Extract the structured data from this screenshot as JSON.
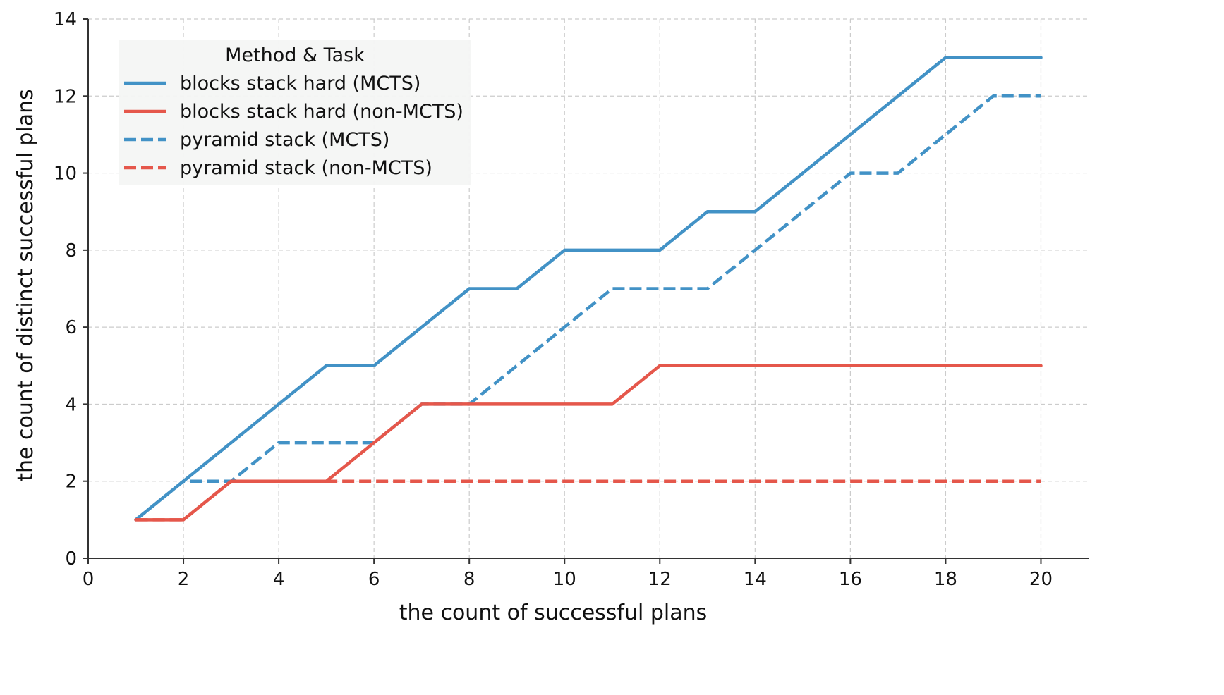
{
  "chart_data": {
    "type": "line",
    "title": "",
    "xlabel": "the count of successful plans",
    "ylabel": "the count of distinct successful plans",
    "xlim": [
      0,
      21
    ],
    "ylim": [
      0,
      14
    ],
    "xticks": [
      0,
      2,
      4,
      6,
      8,
      10,
      12,
      14,
      16,
      18,
      20
    ],
    "yticks": [
      0,
      2,
      4,
      6,
      8,
      10,
      12,
      14
    ],
    "grid": true,
    "legend": {
      "title": "Method & Task",
      "position": "top-left"
    },
    "x": [
      1,
      2,
      3,
      4,
      5,
      6,
      7,
      8,
      9,
      10,
      11,
      12,
      13,
      14,
      15,
      16,
      17,
      18,
      19,
      20
    ],
    "series": [
      {
        "name": "blocks stack hard (MCTS)",
        "color": "#4292c6",
        "style": "solid",
        "values": [
          1,
          2,
          3,
          4,
          5,
          5,
          6,
          7,
          7,
          8,
          8,
          8,
          9,
          9,
          10,
          11,
          12,
          13,
          13,
          13
        ]
      },
      {
        "name": "blocks stack hard (non-MCTS)",
        "color": "#e5574b",
        "style": "solid",
        "values": [
          1,
          1,
          2,
          2,
          2,
          3,
          4,
          4,
          4,
          4,
          4,
          5,
          5,
          5,
          5,
          5,
          5,
          5,
          5,
          5
        ]
      },
      {
        "name": "pyramid stack (MCTS)",
        "color": "#4292c6",
        "style": "dashed",
        "values": [
          1,
          2,
          2,
          3,
          3,
          3,
          4,
          4,
          5,
          6,
          7,
          7,
          7,
          8,
          9,
          10,
          10,
          11,
          12,
          12
        ]
      },
      {
        "name": "pyramid stack (non-MCTS)",
        "color": "#e5574b",
        "style": "dashed",
        "values": [
          1,
          1,
          2,
          2,
          2,
          2,
          2,
          2,
          2,
          2,
          2,
          2,
          2,
          2,
          2,
          2,
          2,
          2,
          2,
          2
        ]
      }
    ]
  }
}
